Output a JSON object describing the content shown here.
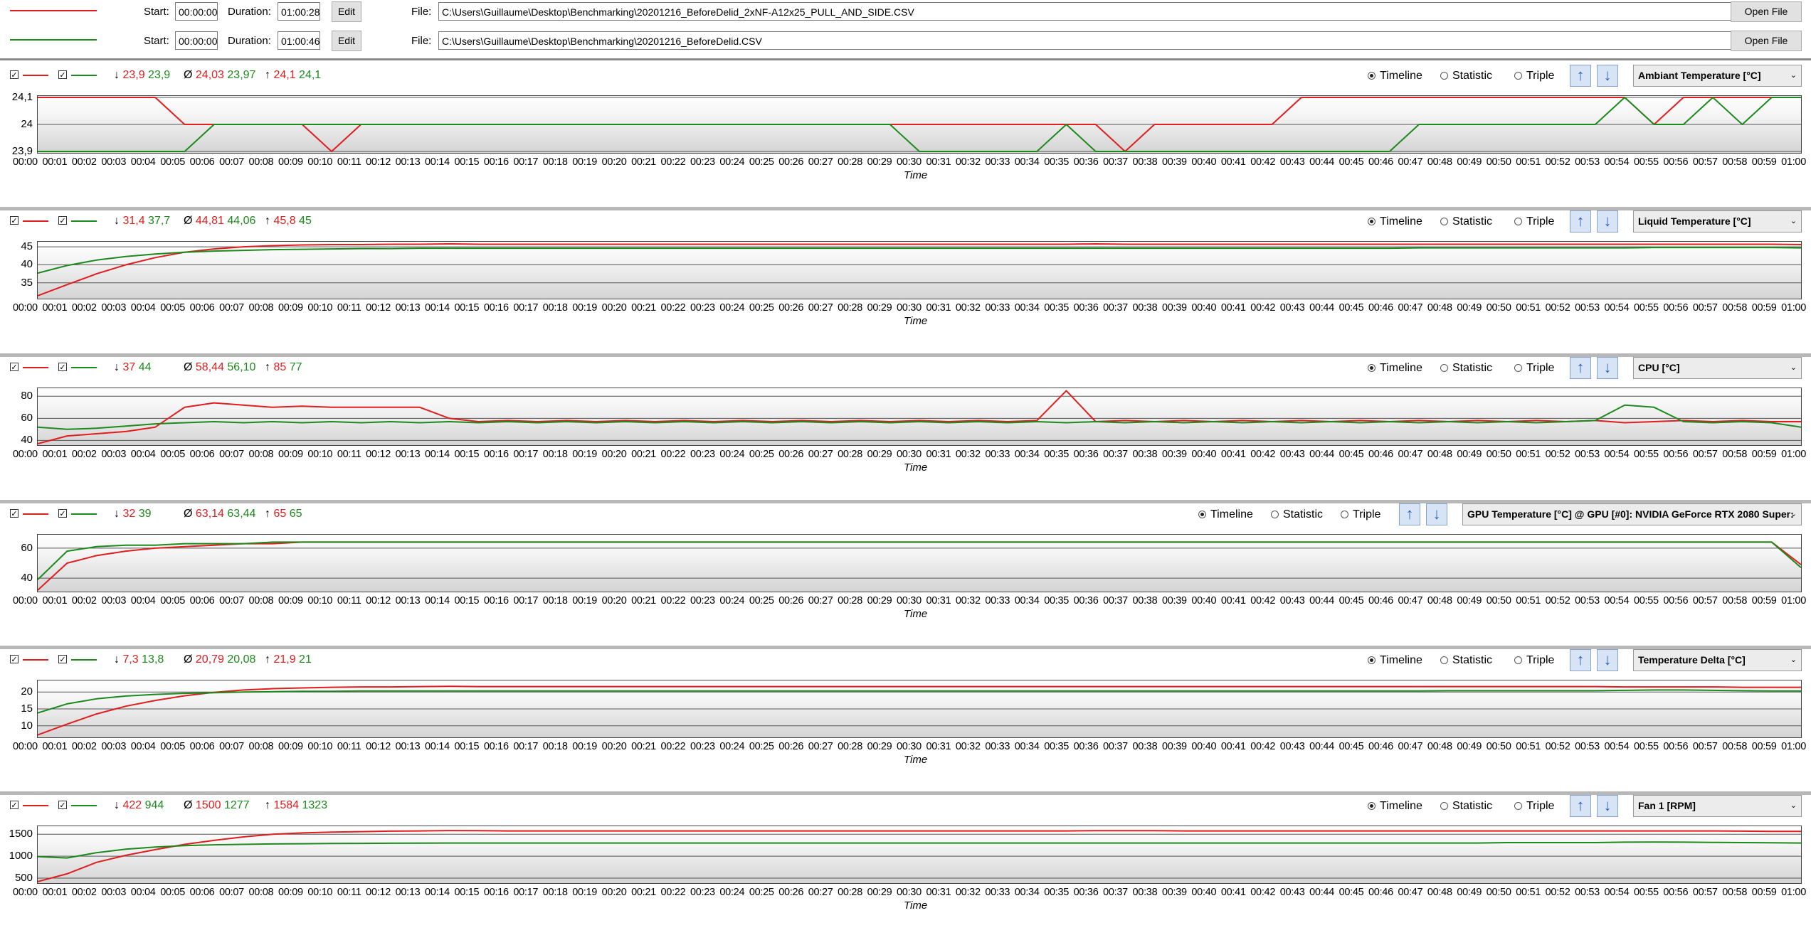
{
  "files": [
    {
      "color": "#e11d1d",
      "start_label": "Start:",
      "start": "00:00:00",
      "duration_label": "Duration:",
      "duration": "01:00:28",
      "edit_label": "Edit",
      "file_label": "File:",
      "path": "C:\\Users\\Guillaume\\Desktop\\Benchmarking\\20201216_BeforeDelid_2xNF-A12x25_PULL_AND_SIDE.CSV",
      "open_label": "Open File"
    },
    {
      "color": "#1c8a1c",
      "start_label": "Start:",
      "start": "00:00:00",
      "duration_label": "Duration:",
      "duration": "01:00:46",
      "edit_label": "Edit",
      "file_label": "File:",
      "path": "C:\\Users\\Guillaume\\Desktop\\Benchmarking\\20201216_BeforeDelid.CSV",
      "open_label": "Open File"
    }
  ],
  "radio_labels": {
    "timeline": "Timeline",
    "statistic": "Statistic",
    "triple": "Triple"
  },
  "x_axis_title": "Time",
  "x_ticks": [
    "00:00",
    "00:01",
    "00:02",
    "00:03",
    "00:04",
    "00:05",
    "00:06",
    "00:07",
    "00:08",
    "00:09",
    "00:10",
    "00:11",
    "00:12",
    "00:13",
    "00:14",
    "00:15",
    "00:16",
    "00:17",
    "00:18",
    "00:19",
    "00:20",
    "00:21",
    "00:22",
    "00:23",
    "00:24",
    "00:25",
    "00:26",
    "00:27",
    "00:28",
    "00:29",
    "00:30",
    "00:31",
    "00:32",
    "00:33",
    "00:34",
    "00:35",
    "00:36",
    "00:37",
    "00:38",
    "00:39",
    "00:40",
    "00:41",
    "00:42",
    "00:43",
    "00:44",
    "00:45",
    "00:46",
    "00:47",
    "00:48",
    "00:49",
    "00:50",
    "00:51",
    "00:52",
    "00:53",
    "00:54",
    "00:55",
    "00:56",
    "00:57",
    "00:58",
    "00:59",
    "01:00"
  ],
  "chart_data": [
    {
      "type": "line",
      "sensor": "Ambiant Temperature [°C]",
      "xlabel": "Time",
      "ylim": [
        23.9,
        24.1
      ],
      "yticks": [
        "24,1",
        "24",
        "23,9"
      ],
      "stats": {
        "min": [
          "23,9",
          "23,9"
        ],
        "avg": [
          "24,03",
          "23,97"
        ],
        "max": [
          "24,1",
          "24,1"
        ]
      },
      "series": [
        {
          "color": "#e11d1d",
          "values": [
            24.1,
            24.1,
            24.1,
            24.1,
            24.1,
            24.0,
            24.0,
            24.0,
            24.0,
            24.0,
            23.9,
            24.0,
            24.0,
            24.0,
            24.0,
            24.0,
            24.0,
            24.0,
            24.0,
            24.0,
            24.0,
            24.0,
            24.0,
            24.0,
            24.0,
            24.0,
            24.0,
            24.0,
            24.0,
            24.0,
            24.0,
            24.0,
            24.0,
            24.0,
            24.0,
            24.0,
            24.0,
            23.9,
            24.0,
            24.0,
            24.0,
            24.0,
            24.0,
            24.1,
            24.1,
            24.1,
            24.1,
            24.1,
            24.1,
            24.1,
            24.1,
            24.1,
            24.1,
            24.1,
            24.1,
            24.0,
            24.1,
            24.1,
            24.1,
            24.1,
            24.1
          ]
        },
        {
          "color": "#1c8a1c",
          "values": [
            23.9,
            23.9,
            23.9,
            23.9,
            23.9,
            23.9,
            24.0,
            24.0,
            24.0,
            24.0,
            24.0,
            24.0,
            24.0,
            24.0,
            24.0,
            24.0,
            24.0,
            24.0,
            24.0,
            24.0,
            24.0,
            24.0,
            24.0,
            24.0,
            24.0,
            24.0,
            24.0,
            24.0,
            24.0,
            24.0,
            23.9,
            23.9,
            23.9,
            23.9,
            23.9,
            24.0,
            23.9,
            23.9,
            23.9,
            23.9,
            23.9,
            23.9,
            23.9,
            23.9,
            23.9,
            23.9,
            23.9,
            24.0,
            24.0,
            24.0,
            24.0,
            24.0,
            24.0,
            24.0,
            24.1,
            24.0,
            24.0,
            24.1,
            24.0,
            24.1,
            24.1
          ]
        }
      ]
    },
    {
      "type": "line",
      "sensor": "Liquid Temperature [°C]",
      "xlabel": "Time",
      "ylim": [
        31,
        46
      ],
      "yticks": [
        "45",
        "40",
        "35"
      ],
      "stats": {
        "min": [
          "31,4",
          "37,7"
        ],
        "avg": [
          "44,81",
          "44,06"
        ],
        "max": [
          "45,8",
          "45"
        ]
      },
      "series": [
        {
          "color": "#e11d1d",
          "values": [
            31.4,
            34.5,
            37.5,
            40.0,
            42.0,
            43.5,
            44.4,
            45.0,
            45.3,
            45.5,
            45.6,
            45.6,
            45.7,
            45.7,
            45.8,
            45.7,
            45.7,
            45.7,
            45.7,
            45.7,
            45.7,
            45.7,
            45.7,
            45.7,
            45.7,
            45.7,
            45.7,
            45.7,
            45.7,
            45.7,
            45.7,
            45.7,
            45.7,
            45.7,
            45.7,
            45.7,
            45.8,
            45.7,
            45.7,
            45.7,
            45.7,
            45.7,
            45.7,
            45.7,
            45.7,
            45.7,
            45.7,
            45.7,
            45.7,
            45.7,
            45.7,
            45.7,
            45.7,
            45.7,
            45.7,
            45.7,
            45.7,
            45.7,
            45.7,
            45.7,
            45.6
          ]
        },
        {
          "color": "#1c8a1c",
          "values": [
            37.7,
            39.8,
            41.3,
            42.3,
            43.0,
            43.5,
            43.8,
            44.0,
            44.2,
            44.3,
            44.4,
            44.5,
            44.5,
            44.6,
            44.6,
            44.6,
            44.6,
            44.6,
            44.6,
            44.6,
            44.6,
            44.6,
            44.6,
            44.6,
            44.6,
            44.6,
            44.6,
            44.6,
            44.6,
            44.6,
            44.6,
            44.6,
            44.6,
            44.6,
            44.6,
            44.6,
            44.6,
            44.6,
            44.6,
            44.6,
            44.6,
            44.6,
            44.6,
            44.6,
            44.6,
            44.6,
            44.6,
            44.7,
            44.7,
            44.7,
            44.7,
            44.7,
            44.7,
            44.7,
            44.7,
            44.8,
            44.8,
            44.8,
            44.8,
            44.8,
            44.7
          ]
        }
      ]
    },
    {
      "type": "line",
      "sensor": "CPU [°C]",
      "xlabel": "Time",
      "ylim": [
        37,
        86
      ],
      "yticks": [
        "80",
        "60",
        "40"
      ],
      "stats": {
        "min": [
          "37",
          "44"
        ],
        "avg": [
          "58,44",
          "56,10"
        ],
        "max": [
          "85",
          "77"
        ]
      },
      "series": [
        {
          "color": "#e11d1d",
          "values": [
            37,
            44,
            46,
            48,
            52,
            70,
            74,
            72,
            70,
            71,
            70,
            70,
            70,
            70,
            60,
            57,
            58,
            57,
            58,
            57,
            58,
            57,
            58,
            57,
            58,
            57,
            58,
            57,
            58,
            57,
            58,
            57,
            58,
            57,
            58,
            85,
            57,
            58,
            57,
            58,
            57,
            58,
            57,
            58,
            57,
            58,
            57,
            58,
            57,
            58,
            57,
            58,
            57,
            58,
            56,
            57,
            58,
            57,
            58,
            57,
            57
          ]
        },
        {
          "color": "#1c8a1c",
          "values": [
            52,
            50,
            51,
            53,
            55,
            56,
            57,
            56,
            57,
            56,
            57,
            56,
            57,
            56,
            57,
            56,
            57,
            56,
            57,
            56,
            57,
            56,
            57,
            56,
            57,
            56,
            57,
            56,
            57,
            56,
            57,
            56,
            57,
            56,
            57,
            56,
            57,
            56,
            57,
            56,
            57,
            56,
            57,
            56,
            57,
            56,
            57,
            56,
            57,
            56,
            57,
            56,
            57,
            58,
            72,
            70,
            57,
            56,
            57,
            56,
            52
          ]
        }
      ]
    },
    {
      "type": "line",
      "sensor": "GPU Temperature [°C] @ GPU [#0]: NVIDIA GeForce RTX 2080 Super:",
      "xlabel": "Time",
      "ylim": [
        32,
        68
      ],
      "yticks": [
        "60",
        "40"
      ],
      "stats": {
        "min": [
          "32",
          "39"
        ],
        "avg": [
          "63,14",
          "63,44"
        ],
        "max": [
          "65",
          "65"
        ]
      },
      "series": [
        {
          "color": "#e11d1d",
          "values": [
            32,
            50,
            55,
            58,
            60,
            61,
            62,
            63,
            63,
            64,
            64,
            64,
            64,
            64,
            64,
            64,
            64,
            64,
            64,
            64,
            64,
            64,
            64,
            64,
            64,
            64,
            64,
            64,
            64,
            64,
            64,
            64,
            64,
            64,
            64,
            64,
            64,
            64,
            64,
            64,
            64,
            64,
            64,
            64,
            64,
            64,
            64,
            64,
            64,
            64,
            64,
            64,
            64,
            64,
            64,
            64,
            64,
            64,
            64,
            64,
            49
          ]
        },
        {
          "color": "#1c8a1c",
          "values": [
            39,
            58,
            61,
            62,
            62,
            63,
            63,
            63,
            64,
            64,
            64,
            64,
            64,
            64,
            64,
            64,
            64,
            64,
            64,
            64,
            64,
            64,
            64,
            64,
            64,
            64,
            64,
            64,
            64,
            64,
            64,
            64,
            64,
            64,
            64,
            64,
            64,
            64,
            64,
            64,
            64,
            64,
            64,
            64,
            64,
            64,
            64,
            64,
            64,
            64,
            64,
            64,
            64,
            64,
            64,
            64,
            64,
            64,
            64,
            64,
            47
          ]
        }
      ]
    },
    {
      "type": "line",
      "sensor": "Temperature Delta [°C]",
      "xlabel": "Time",
      "ylim": [
        7,
        23
      ],
      "yticks": [
        "20",
        "15",
        "10"
      ],
      "stats": {
        "min": [
          "7,3",
          "13,8"
        ],
        "avg": [
          "20,79",
          "20,08"
        ],
        "max": [
          "21,9",
          "21"
        ]
      },
      "series": [
        {
          "color": "#e11d1d",
          "values": [
            7.3,
            10.5,
            13.5,
            15.8,
            17.5,
            18.9,
            19.9,
            20.6,
            21.0,
            21.2,
            21.4,
            21.5,
            21.5,
            21.6,
            21.7,
            21.6,
            21.6,
            21.6,
            21.6,
            21.6,
            21.6,
            21.6,
            21.6,
            21.6,
            21.6,
            21.6,
            21.6,
            21.6,
            21.6,
            21.6,
            21.6,
            21.6,
            21.6,
            21.6,
            21.6,
            21.6,
            21.6,
            21.6,
            21.6,
            21.6,
            21.6,
            21.6,
            21.6,
            21.6,
            21.6,
            21.6,
            21.6,
            21.6,
            21.6,
            21.6,
            21.6,
            21.6,
            21.6,
            21.6,
            21.5,
            21.5,
            21.5,
            21.5,
            21.4,
            21.4,
            21.4
          ]
        },
        {
          "color": "#1c8a1c",
          "values": [
            13.8,
            16.5,
            18.0,
            18.8,
            19.3,
            19.6,
            19.8,
            20.0,
            20.1,
            20.2,
            20.2,
            20.3,
            20.3,
            20.3,
            20.3,
            20.3,
            20.3,
            20.3,
            20.3,
            20.3,
            20.3,
            20.3,
            20.3,
            20.3,
            20.3,
            20.3,
            20.3,
            20.3,
            20.3,
            20.3,
            20.3,
            20.3,
            20.3,
            20.3,
            20.3,
            20.3,
            20.3,
            20.3,
            20.3,
            20.3,
            20.3,
            20.3,
            20.3,
            20.3,
            20.3,
            20.3,
            20.3,
            20.3,
            20.4,
            20.4,
            20.4,
            20.4,
            20.4,
            20.4,
            20.5,
            20.6,
            20.6,
            20.5,
            20.4,
            20.3,
            20.3
          ]
        }
      ]
    },
    {
      "type": "line",
      "sensor": "Fan 1 [RPM]",
      "xlabel": "Time",
      "ylim": [
        420,
        1650
      ],
      "yticks": [
        "1500",
        "1000",
        "500"
      ],
      "stats": {
        "min": [
          "422",
          "944"
        ],
        "avg": [
          "1500",
          "1277"
        ],
        "max": [
          "1584",
          "1323"
        ]
      },
      "series": [
        {
          "color": "#e11d1d",
          "values": [
            422,
            600,
            860,
            1020,
            1150,
            1270,
            1360,
            1440,
            1500,
            1530,
            1550,
            1560,
            1570,
            1575,
            1584,
            1580,
            1575,
            1575,
            1575,
            1575,
            1575,
            1575,
            1575,
            1575,
            1575,
            1575,
            1575,
            1575,
            1575,
            1575,
            1575,
            1575,
            1575,
            1575,
            1575,
            1575,
            1580,
            1580,
            1580,
            1575,
            1575,
            1575,
            1575,
            1575,
            1575,
            1575,
            1575,
            1575,
            1575,
            1575,
            1575,
            1575,
            1575,
            1575,
            1575,
            1575,
            1575,
            1575,
            1570,
            1565,
            1565
          ]
        },
        {
          "color": "#1c8a1c",
          "values": [
            990,
            960,
            1080,
            1160,
            1210,
            1240,
            1260,
            1270,
            1280,
            1285,
            1290,
            1292,
            1295,
            1298,
            1300,
            1300,
            1300,
            1300,
            1300,
            1300,
            1300,
            1300,
            1300,
            1300,
            1300,
            1300,
            1300,
            1300,
            1300,
            1300,
            1300,
            1300,
            1300,
            1300,
            1300,
            1300,
            1300,
            1300,
            1300,
            1300,
            1300,
            1300,
            1300,
            1300,
            1300,
            1300,
            1300,
            1300,
            1300,
            1300,
            1310,
            1310,
            1310,
            1310,
            1320,
            1323,
            1320,
            1315,
            1310,
            1305,
            1300
          ]
        }
      ]
    }
  ]
}
